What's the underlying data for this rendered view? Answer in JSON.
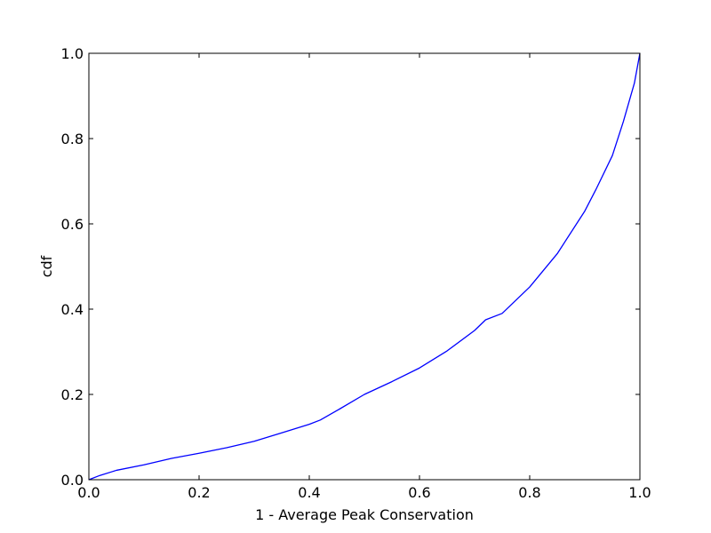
{
  "chart_data": {
    "type": "line",
    "title": "",
    "xlabel": "1 - Average Peak Conservation",
    "ylabel": "cdf",
    "xlim": [
      0.0,
      1.0
    ],
    "ylim": [
      0.0,
      1.0
    ],
    "grid": false,
    "x_ticks": [
      "0.0",
      "0.2",
      "0.4",
      "0.6",
      "0.8",
      "1.0"
    ],
    "y_ticks": [
      "0.0",
      "0.2",
      "0.4",
      "0.6",
      "0.8",
      "1.0"
    ],
    "series": [
      {
        "color": "#0000ff",
        "x": [
          0.0,
          0.02,
          0.05,
          0.1,
          0.15,
          0.2,
          0.25,
          0.3,
          0.35,
          0.4,
          0.42,
          0.45,
          0.5,
          0.55,
          0.6,
          0.65,
          0.7,
          0.72,
          0.75,
          0.8,
          0.85,
          0.9,
          0.92,
          0.95,
          0.97,
          0.99,
          1.0
        ],
        "y": [
          0.0,
          0.01,
          0.022,
          0.035,
          0.05,
          0.062,
          0.075,
          0.09,
          0.11,
          0.13,
          0.14,
          0.162,
          0.2,
          0.23,
          0.262,
          0.302,
          0.35,
          0.375,
          0.39,
          0.452,
          0.53,
          0.63,
          0.68,
          0.76,
          0.84,
          0.93,
          1.0
        ]
      }
    ]
  }
}
